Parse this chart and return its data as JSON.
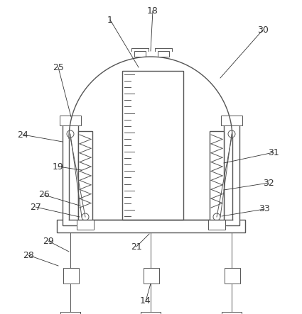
{
  "background_color": "#ffffff",
  "line_color": "#555555",
  "label_color": "#333333",
  "fig_width": 4.25,
  "fig_height": 4.43,
  "dpi": 100
}
